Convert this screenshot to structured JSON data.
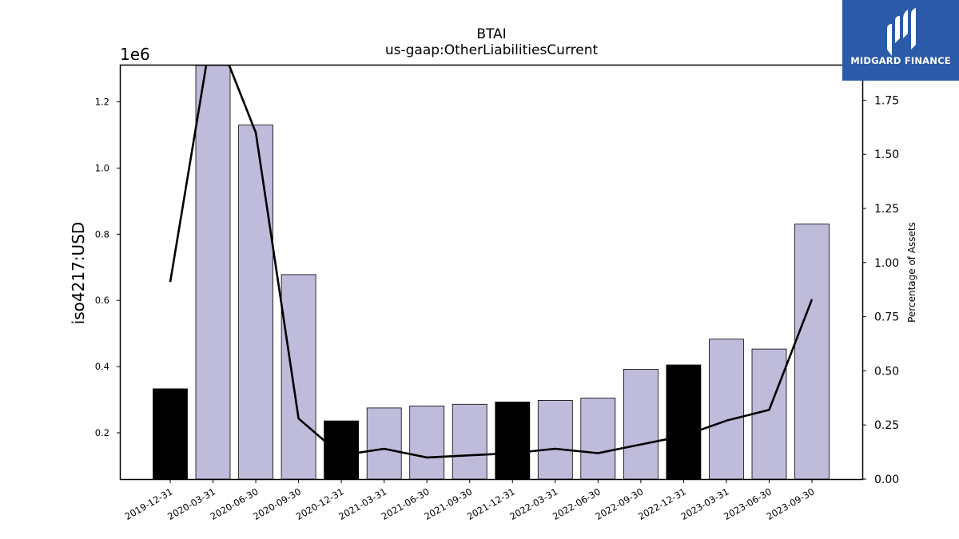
{
  "chart_data": {
    "type": "bar",
    "title": "BTAI",
    "subtitle": "us-gaap:OtherLiabilitiesCurrent",
    "ylabel": "iso4217:USD",
    "y2label": "Percentage of Assets",
    "y_offset_label": "1e6",
    "ylim": [
      60000,
      1310000
    ],
    "y2lim": [
      0,
      1.91
    ],
    "y_ticks": [
      0.2,
      0.4,
      0.6,
      0.8,
      1.0,
      1.2
    ],
    "y_tick_scale": 1000000,
    "y2_ticks": [
      "0.00",
      "0.25",
      "0.50",
      "0.75",
      "1.00",
      "1.25",
      "1.50",
      "1.75"
    ],
    "categories": [
      "2019-12-31",
      "2020-03-31",
      "2020-06-30",
      "2020-09-30",
      "2020-12-31",
      "2021-03-31",
      "2021-06-30",
      "2021-09-30",
      "2021-12-31",
      "2022-03-31",
      "2022-06-30",
      "2022-09-30",
      "2022-12-31",
      "2023-03-31",
      "2023-06-30",
      "2023-09-30"
    ],
    "series": [
      {
        "type": "bar",
        "values": [
          333000,
          1310000,
          1130000,
          678000,
          236000,
          275000,
          281000,
          286000,
          293000,
          298000,
          305000,
          392000,
          405000,
          483000,
          453000,
          831000
        ],
        "highlight": [
          true,
          false,
          false,
          false,
          true,
          false,
          false,
          false,
          true,
          false,
          false,
          false,
          true,
          false,
          false,
          false
        ]
      },
      {
        "type": "line",
        "axis": "right",
        "values": [
          0.91,
          2.1,
          1.6,
          0.28,
          0.11,
          0.14,
          0.1,
          0.11,
          0.12,
          0.14,
          0.12,
          0.16,
          0.2,
          0.27,
          0.32,
          0.83
        ]
      }
    ],
    "colors": {
      "bar": "#bebbdb",
      "highlight_bar": "#000000",
      "line": "#000000"
    },
    "grid": false
  },
  "logo": {
    "text": "MIDGARD FINANCE"
  }
}
